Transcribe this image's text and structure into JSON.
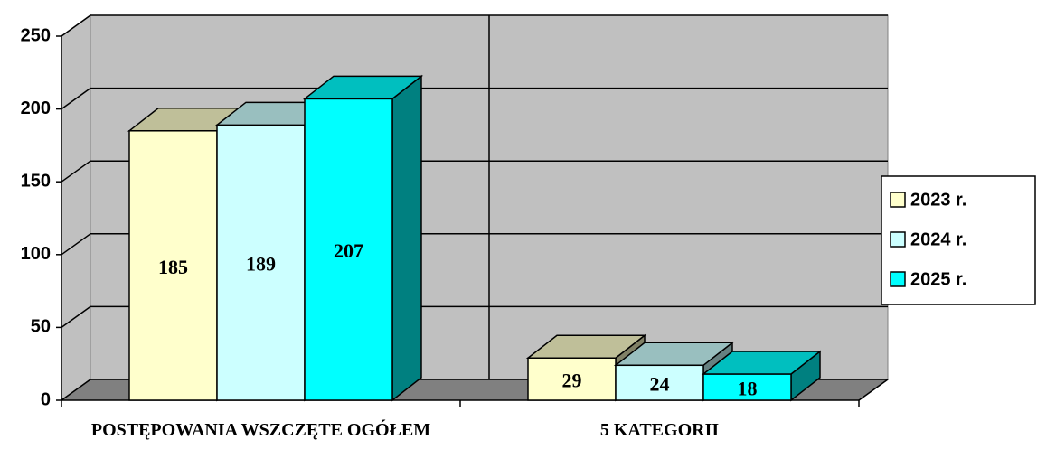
{
  "chart_data": {
    "type": "bar3d",
    "categories": [
      "POSTĘPOWANIA WSZCZĘTE OGÓŁEM",
      "5 KATEGORII"
    ],
    "series": [
      {
        "name": "2023 r.",
        "color": "#FFFFCC",
        "values": [
          185,
          29
        ]
      },
      {
        "name": "2024 r.",
        "color": "#CCFFFF",
        "values": [
          189,
          24
        ]
      },
      {
        "name": "2025 r.",
        "color": "#00FFFF",
        "values": [
          207,
          18
        ]
      }
    ],
    "ylim": [
      0,
      250
    ],
    "yticks": [
      0,
      50,
      100,
      150,
      200,
      250
    ],
    "grid": true,
    "legend": "right"
  }
}
